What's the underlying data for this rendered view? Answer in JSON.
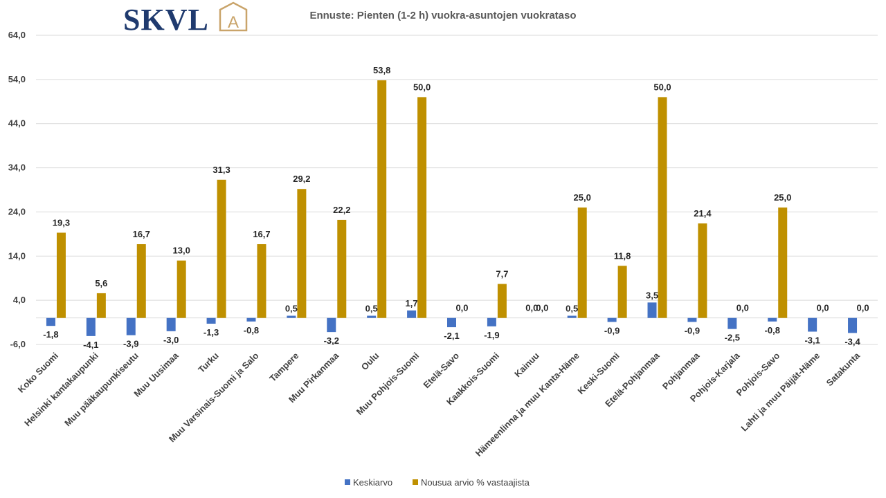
{
  "logo": {
    "text": "SKVL",
    "mark": "A"
  },
  "colors": {
    "series1": "#4472C4",
    "series2": "#BF9000",
    "logo_text": "#1F3A6E",
    "logo_mark": "#C9A46A",
    "grid": "#D9D9D9",
    "text": "#404040"
  },
  "chart_data": {
    "type": "bar",
    "title": "Ennuste: Pienten (1-2 h) vuokra-asuntojen vuokrataso",
    "xlabel": "",
    "ylabel": "",
    "ylim": [
      -6,
      64
    ],
    "yticks": [
      -6,
      4,
      14,
      24,
      34,
      44,
      54,
      64
    ],
    "ytick_labels": [
      "-6,0",
      "4,0",
      "14,0",
      "24,0",
      "34,0",
      "44,0",
      "54,0",
      "64,0"
    ],
    "grid": true,
    "legend_position": "bottom",
    "categories": [
      "Koko Suomi",
      "Helsinki kantakaupunki",
      "Muu pääkaupunkiseutu",
      "Muu Uusimaa",
      "Turku",
      "Muu Varsinais-Suomi ja Salo",
      "Tampere",
      "Muu Pirkanmaa",
      "Oulu",
      "Muu Pohjois-Suomi",
      "Etelä-Savo",
      "Kaakkois-Suomi",
      "Kainuu",
      "Hämeenlinna ja muu Kanta-Häme",
      "Keski-Suomi",
      "Etelä-Pohjanmaa",
      "Pohjanmaa",
      "Pohjois-Karjala",
      "Pohjois-Savo",
      "Lahti ja muu Päijät-Häme",
      "Satakunta"
    ],
    "series": [
      {
        "name": "Keskiarvo",
        "values": [
          -1.8,
          -4.1,
          -3.9,
          -3.0,
          -1.3,
          -0.8,
          0.5,
          -3.2,
          0.5,
          1.7,
          -2.1,
          -1.9,
          0.0,
          0.5,
          -0.9,
          3.5,
          -0.9,
          -2.5,
          -0.8,
          -3.1,
          -3.4
        ],
        "labels": [
          "-1,8",
          "-4,1",
          "-3,9",
          "-3,0",
          "-1,3",
          "-0,8",
          "0,5",
          "-3,2",
          "0,5",
          "1,7",
          "-2,1",
          "-1,9",
          "0,0",
          "0,5",
          "-0,9",
          "3,5",
          "-0,9",
          "-2,5",
          "-0,8",
          "-3,1",
          "-3,4"
        ]
      },
      {
        "name": "Nousua arvio % vastaajista",
        "values": [
          19.3,
          5.6,
          16.7,
          13.0,
          31.3,
          16.7,
          29.2,
          22.2,
          53.8,
          50.0,
          0.0,
          7.7,
          0.0,
          25.0,
          11.8,
          50.0,
          21.4,
          0.0,
          25.0,
          0.0,
          0.0
        ],
        "labels": [
          "19,3",
          "5,6",
          "16,7",
          "13,0",
          "31,3",
          "16,7",
          "29,2",
          "22,2",
          "53,8",
          "50,0",
          "0,0",
          "7,7",
          "0,0",
          "25,0",
          "11,8",
          "50,0",
          "21,4",
          "0,0",
          "25,0",
          "0,0",
          "0,0"
        ]
      }
    ]
  }
}
